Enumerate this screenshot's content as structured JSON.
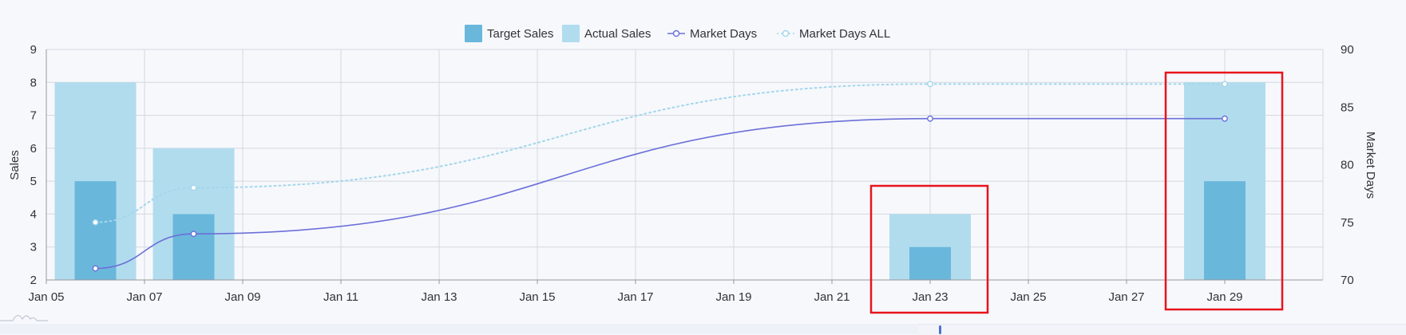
{
  "chart_data": {
    "type": "bar",
    "x": [
      "Jan 06",
      "Jan 08",
      "Jan 23",
      "Jan 29"
    ],
    "x_range": [
      "Jan 05",
      "Jan 31"
    ],
    "x_ticks": [
      "Jan 05",
      "Jan 07",
      "Jan 09",
      "Jan 11",
      "Jan 13",
      "Jan 15",
      "Jan 17",
      "Jan 19",
      "Jan 21",
      "Jan 23",
      "Jan 25",
      "Jan 27",
      "Jan 29"
    ],
    "series": [
      {
        "name": "Target Sales",
        "kind": "bar",
        "axis": "left",
        "color": "#6ab7dc",
        "values": [
          5,
          4,
          3,
          5
        ]
      },
      {
        "name": "Actual Sales",
        "kind": "bar",
        "axis": "left",
        "color": "#b1dcee",
        "values": [
          8,
          6,
          4,
          8
        ]
      },
      {
        "name": "Market Days",
        "kind": "line",
        "axis": "right",
        "color": "#6c6fd8",
        "points": [
          [
            "Jan 06",
            71
          ],
          [
            "Jan 08",
            74
          ],
          [
            "Jan 23",
            84
          ],
          [
            "Jan 29",
            84
          ]
        ]
      },
      {
        "name": "Market Days ALL",
        "kind": "line-dotted",
        "axis": "right",
        "color": "#a4d6ea",
        "points": [
          [
            "Jan 06",
            75
          ],
          [
            "Jan 08",
            78
          ],
          [
            "Jan 23",
            87
          ],
          [
            "Jan 29",
            87
          ]
        ]
      }
    ],
    "ylabel": "Sales",
    "y2label": "Market Days",
    "ylim": [
      2,
      9
    ],
    "y_ticks": [
      "2",
      "3",
      "4",
      "5",
      "6",
      "7",
      "8",
      "9"
    ],
    "y2lim": [
      70,
      90
    ],
    "y2_ticks": [
      "70",
      "75",
      "80",
      "85",
      "90"
    ],
    "grid": true,
    "legend": "top-center",
    "highlighted": [
      "Jan 23",
      "Jan 29"
    ],
    "highlight_color": "#e8141b"
  }
}
